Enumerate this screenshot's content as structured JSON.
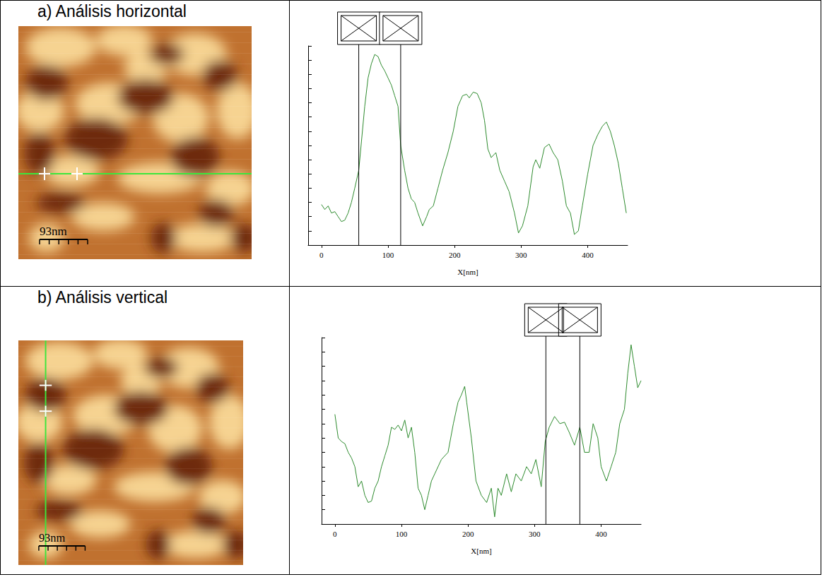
{
  "chart_data": [
    {
      "type": "line",
      "title": "a) Análisis horizontal",
      "scale_bar_label": "93nm",
      "x_label": "X[nm]",
      "color": "#2e8b2e",
      "grid": false,
      "tick_labels": "x",
      "xlim": [
        -20,
        460
      ],
      "xticks": [
        0,
        100,
        200,
        300,
        400
      ],
      "ylim": [
        0,
        14
      ],
      "yticks": [
        0,
        1,
        2,
        3,
        4,
        5,
        6,
        7,
        8,
        9,
        10,
        11,
        12,
        13,
        14
      ],
      "cursors": [
        56,
        119
      ],
      "x": [
        0,
        5,
        10,
        15,
        20,
        25,
        30,
        35,
        40,
        45,
        50,
        56,
        60,
        65,
        70,
        75,
        80,
        85,
        90,
        95,
        100,
        105,
        110,
        115,
        119,
        125,
        130,
        135,
        140,
        145,
        152,
        158,
        162,
        168,
        175,
        182,
        190,
        198,
        205,
        212,
        218,
        222,
        228,
        234,
        240,
        245,
        250,
        255,
        262,
        268,
        275,
        282,
        290,
        296,
        302,
        310,
        318,
        322,
        328,
        335,
        342,
        348,
        355,
        362,
        368,
        374,
        380,
        386,
        392,
        400,
        408,
        415,
        422,
        428,
        434,
        440,
        446,
        452,
        458
      ],
      "values": [
        2.85,
        2.5,
        2.75,
        2.25,
        2.35,
        2.0,
        1.65,
        1.75,
        2.25,
        3.0,
        4.0,
        5.25,
        7.25,
        9.75,
        11.75,
        12.75,
        13.4,
        13.25,
        12.65,
        12.25,
        11.75,
        11.25,
        10.5,
        9.75,
        7.0,
        5.25,
        4.0,
        3.25,
        3.0,
        2.25,
        1.35,
        2.0,
        2.5,
        2.75,
        4.0,
        5.25,
        6.5,
        8.0,
        9.75,
        10.5,
        10.6,
        10.35,
        10.75,
        10.65,
        10.0,
        8.75,
        6.75,
        6.15,
        6.5,
        5.25,
        4.5,
        3.75,
        2.25,
        0.85,
        1.35,
        2.75,
        5.5,
        6.0,
        5.4,
        6.85,
        7.1,
        6.5,
        6.0,
        4.5,
        2.75,
        2.25,
        0.75,
        1.0,
        2.75,
        5.0,
        7.0,
        7.75,
        8.35,
        8.65,
        8.0,
        7.0,
        5.75,
        4.0,
        2.25
      ]
    },
    {
      "type": "line",
      "title": "b) Análisis vertical",
      "scale_bar_label": "93nm",
      "x_label": "X[nm]",
      "color": "#2e8b2e",
      "grid": false,
      "tick_labels": "x",
      "xlim": [
        -20,
        460
      ],
      "xticks": [
        0,
        100,
        200,
        300,
        400
      ],
      "ylim": [
        0,
        13
      ],
      "yticks": [
        0,
        1,
        2,
        3,
        4,
        5,
        6,
        7,
        8,
        9,
        10,
        11,
        12,
        13
      ],
      "cursors": [
        317,
        368
      ],
      "x": [
        0,
        5,
        10,
        15,
        20,
        25,
        30,
        35,
        40,
        45,
        50,
        55,
        60,
        65,
        70,
        75,
        80,
        85,
        90,
        95,
        100,
        105,
        110,
        115,
        120,
        125,
        130,
        135,
        140,
        145,
        150,
        160,
        170,
        178,
        185,
        190,
        195,
        198,
        205,
        212,
        220,
        228,
        235,
        240,
        245,
        250,
        258,
        265,
        272,
        280,
        288,
        295,
        302,
        310,
        316,
        322,
        330,
        338,
        345,
        352,
        360,
        368,
        375,
        382,
        388,
        395,
        400,
        408,
        415,
        422,
        428,
        435,
        440,
        445,
        450,
        455,
        460
      ],
      "values": [
        7.65,
        6.0,
        5.75,
        5.6,
        5.0,
        4.6,
        4.0,
        2.6,
        3.0,
        2.0,
        1.5,
        1.6,
        2.5,
        3.0,
        4.0,
        4.75,
        5.5,
        6.75,
        6.6,
        6.9,
        6.5,
        7.25,
        6.0,
        6.75,
        5.0,
        2.5,
        2.0,
        1.0,
        2.0,
        3.0,
        3.5,
        4.5,
        5.0,
        7.0,
        8.5,
        9.0,
        9.6,
        8.5,
        6.0,
        3.0,
        2.0,
        1.5,
        2.5,
        0.5,
        2.5,
        2.0,
        3.5,
        2.25,
        3.5,
        3.0,
        4.0,
        3.5,
        4.5,
        2.6,
        5.75,
        6.75,
        7.5,
        7.0,
        7.1,
        6.4,
        5.5,
        6.75,
        5.0,
        5.0,
        7.0,
        6.0,
        4.0,
        3.0,
        4.0,
        5.0,
        7.0,
        8.0,
        10.5,
        12.5,
        11.0,
        9.5,
        10.0
      ]
    }
  ]
}
